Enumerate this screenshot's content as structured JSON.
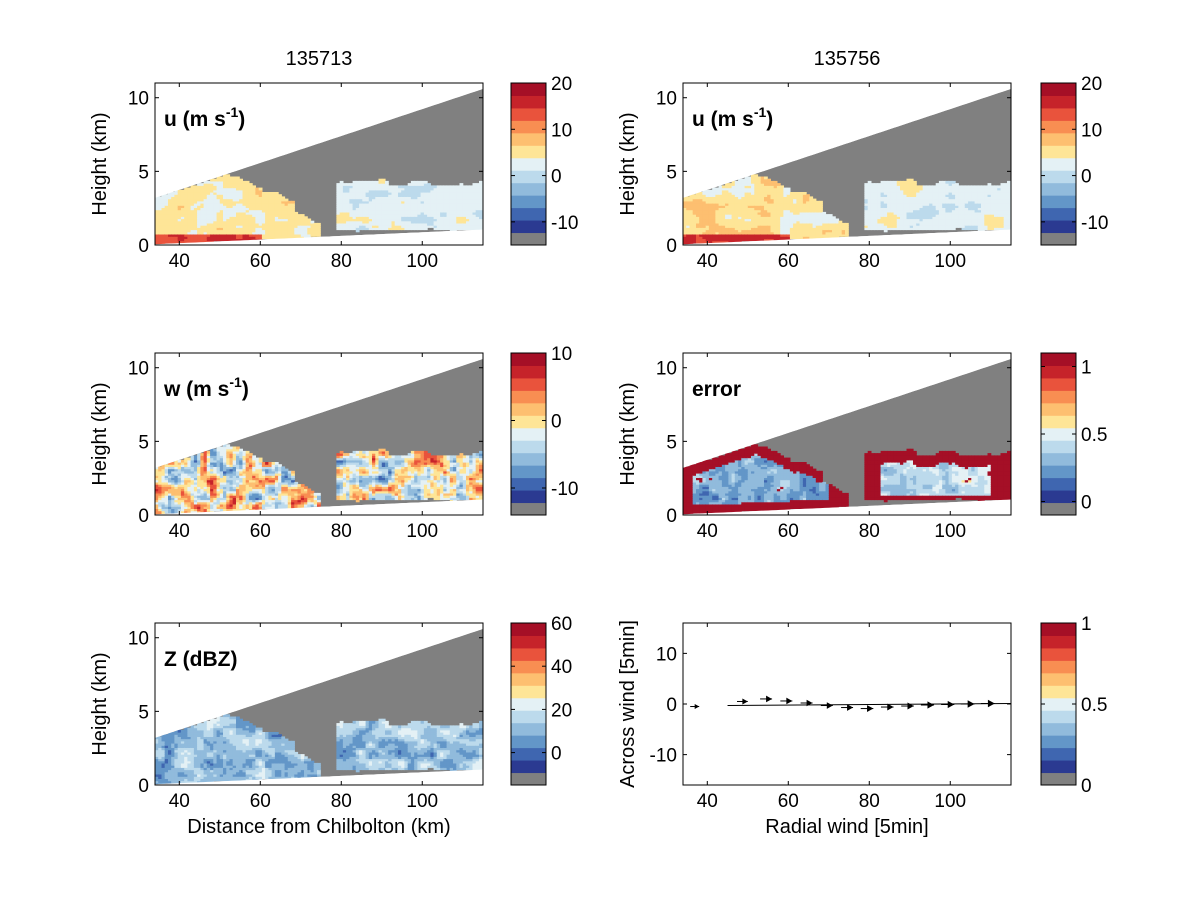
{
  "chart_data": [
    {
      "type": "heatmap",
      "title": "135713",
      "label": "u (m s",
      "label_sup": "-1",
      "label_end": ")",
      "ylabel": "Height (km)",
      "xlabel": "",
      "xticks": [
        40,
        60,
        80,
        100
      ],
      "yticks": [
        0,
        5,
        10
      ],
      "xlim": [
        34,
        115
      ],
      "ylim": [
        0,
        11
      ],
      "colorbar": {
        "ticks": [
          "20",
          "10",
          "0",
          "-10"
        ],
        "range": [
          -15,
          20
        ]
      },
      "field": "u"
    },
    {
      "type": "heatmap",
      "title": "135756",
      "label": "u (m s",
      "label_sup": "-1",
      "label_end": ")",
      "ylabel": "Height (km)",
      "xlabel": "",
      "xticks": [
        40,
        60,
        80,
        100
      ],
      "yticks": [
        0,
        5,
        10
      ],
      "xlim": [
        34,
        115
      ],
      "ylim": [
        0,
        11
      ],
      "colorbar": {
        "ticks": [
          "20",
          "10",
          "0",
          "-10"
        ],
        "range": [
          -15,
          20
        ]
      },
      "field": "u"
    },
    {
      "type": "heatmap",
      "title": "",
      "label": "w (m s",
      "label_sup": "-1",
      "label_end": ")",
      "ylabel": "Height (km)",
      "xlabel": "",
      "xticks": [
        40,
        60,
        80,
        100
      ],
      "yticks": [
        0,
        5,
        10
      ],
      "xlim": [
        34,
        115
      ],
      "ylim": [
        0,
        11
      ],
      "colorbar": {
        "ticks": [
          "10",
          "0",
          "-10"
        ],
        "range": [
          -14,
          10
        ]
      },
      "field": "w"
    },
    {
      "type": "heatmap",
      "title": "",
      "label": "error",
      "label_sup": "",
      "label_end": "",
      "ylabel": "Height (km)",
      "xlabel": "",
      "xticks": [
        40,
        60,
        80,
        100
      ],
      "yticks": [
        0,
        5,
        10
      ],
      "xlim": [
        34,
        115
      ],
      "ylim": [
        0,
        11
      ],
      "colorbar": {
        "ticks": [
          "1",
          "0.5",
          "0"
        ],
        "range": [
          -0.1,
          1.1
        ]
      },
      "field": "error"
    },
    {
      "type": "heatmap",
      "title": "",
      "label": "Z (dBZ)",
      "label_sup": "",
      "label_end": "",
      "ylabel": "Height (km)",
      "xlabel": "Distance from Chilbolton (km)",
      "xticks": [
        40,
        60,
        80,
        100
      ],
      "yticks": [
        0,
        5,
        10
      ],
      "xlim": [
        34,
        115
      ],
      "ylim": [
        0,
        11
      ],
      "colorbar": {
        "ticks": [
          "60",
          "40",
          "20",
          "0"
        ],
        "range": [
          -15,
          60
        ]
      },
      "field": "Z"
    },
    {
      "type": "scatter",
      "title": "",
      "label": "",
      "ylabel": "Across wind [5min]",
      "xlabel": "Radial wind [5min]",
      "xticks": [
        40,
        60,
        80,
        100
      ],
      "yticks": [
        10,
        0,
        -10
      ],
      "xlim": [
        34,
        115
      ],
      "ylim": [
        -16,
        16
      ],
      "colorbar": {
        "ticks": [
          "1",
          "0.5",
          "0"
        ],
        "range": [
          0,
          1
        ]
      },
      "line_x": [
        45,
        115
      ],
      "line_y": [
        -0.3,
        0.1
      ],
      "points": [
        {
          "x": 38,
          "y": -0.5,
          "size": 0.5
        },
        {
          "x": 50,
          "y": 0.5,
          "size": 0.8
        },
        {
          "x": 56,
          "y": 1.0,
          "size": 1.0
        },
        {
          "x": 61,
          "y": 0.6,
          "size": 1.0
        },
        {
          "x": 66,
          "y": 0.2,
          "size": 1.0
        },
        {
          "x": 71,
          "y": -0.3,
          "size": 1.0
        },
        {
          "x": 76,
          "y": -0.7,
          "size": 1.0
        },
        {
          "x": 81,
          "y": -0.9,
          "size": 1.1
        },
        {
          "x": 86,
          "y": -0.6,
          "size": 1.1
        },
        {
          "x": 91,
          "y": -0.4,
          "size": 1.1
        },
        {
          "x": 96,
          "y": -0.2,
          "size": 1.2
        },
        {
          "x": 101,
          "y": -0.1,
          "size": 1.2
        },
        {
          "x": 106,
          "y": 0.0,
          "size": 1.3
        },
        {
          "x": 111,
          "y": 0.1,
          "size": 1.3
        }
      ]
    }
  ],
  "colormap": [
    "#808080",
    "#2b3a91",
    "#3f66b0",
    "#6396c8",
    "#91bbdc",
    "#bcdaec",
    "#e4f1f5",
    "#fee597",
    "#fdbf70",
    "#f88e52",
    "#e9533c",
    "#c6232a",
    "#a50f26"
  ],
  "colors": {
    "mask_gray": "#808080",
    "background": "#ffffff"
  }
}
